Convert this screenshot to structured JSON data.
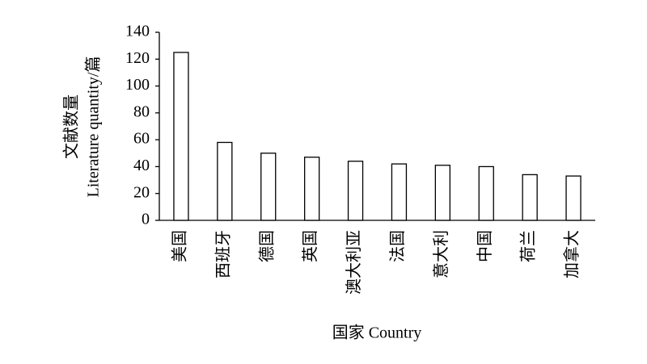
{
  "chart_data": {
    "type": "bar",
    "ylabel": [
      "文献数量",
      "Literature quantity/篇"
    ],
    "xlabel": "国家 Country",
    "categories": [
      "美国",
      "西班牙",
      "德国",
      "英国",
      "澳大利亚",
      "法国",
      "意大利",
      "中国",
      "荷兰",
      "加拿大"
    ],
    "values": [
      125,
      58,
      50,
      47,
      44,
      42,
      41,
      40,
      34,
      33
    ],
    "color": "#ffffff",
    "edgecolor": "#000000",
    "ylim": [
      0,
      140
    ],
    "yticks": [
      0,
      20,
      40,
      60,
      80,
      100,
      120,
      140
    ],
    "grid": false
  }
}
